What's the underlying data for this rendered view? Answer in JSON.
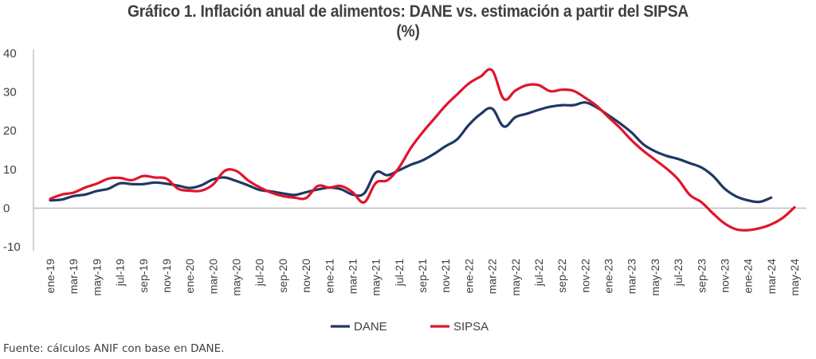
{
  "chart_data": {
    "type": "line",
    "title": "Gráfico 1. Inflación anual de alimentos: DANE vs. estimación a partir del SIPSA",
    "subtitle": "(%)",
    "xlabel": "",
    "ylabel": "",
    "ylim": [
      -10,
      40
    ],
    "yticks": [
      "-10",
      "0",
      "10",
      "20",
      "30",
      "40"
    ],
    "ytick_values": [
      -10,
      0,
      10,
      20,
      30,
      40
    ],
    "grid": false,
    "legend_position": "bottom-center",
    "x": [
      "ene-19",
      "feb-19",
      "mar-19",
      "abr-19",
      "may-19",
      "jun-19",
      "jul-19",
      "ago-19",
      "sep-19",
      "oct-19",
      "nov-19",
      "dic-19",
      "ene-20",
      "feb-20",
      "mar-20",
      "abr-20",
      "may-20",
      "jun-20",
      "jul-20",
      "ago-20",
      "sep-20",
      "oct-20",
      "nov-20",
      "dic-20",
      "ene-21",
      "feb-21",
      "mar-21",
      "abr-21",
      "may-21",
      "jun-21",
      "jul-21",
      "ago-21",
      "sep-21",
      "oct-21",
      "nov-21",
      "dic-21",
      "ene-22",
      "feb-22",
      "mar-22",
      "abr-22",
      "may-22",
      "jun-22",
      "jul-22",
      "ago-22",
      "sep-22",
      "oct-22",
      "nov-22",
      "dic-22",
      "ene-23",
      "feb-23",
      "mar-23",
      "abr-23",
      "may-23",
      "jun-23",
      "jul-23",
      "ago-23",
      "sep-23",
      "oct-23",
      "nov-23",
      "dic-23",
      "ene-24",
      "feb-24",
      "mar-24",
      "abr-24",
      "may-24"
    ],
    "tick_labels": [
      "ene-19",
      "mar-19",
      "may-19",
      "jul-19",
      "sep-19",
      "nov-19",
      "ene-20",
      "mar-20",
      "may-20",
      "jul-20",
      "sep-20",
      "nov-20",
      "ene-21",
      "mar-21",
      "may-21",
      "jul-21",
      "sep-21",
      "nov-21",
      "ene-22",
      "mar-22",
      "may-22",
      "jul-22",
      "sep-22",
      "nov-22",
      "ene-23",
      "mar-23",
      "may-23",
      "jul-23",
      "sep-23",
      "nov-23",
      "ene-24",
      "mar-24",
      "may-24"
    ],
    "series": [
      {
        "name": "DANE",
        "color": "#1f3864",
        "values": [
          2.0,
          2.2,
          3.1,
          3.5,
          4.4,
          5.0,
          6.4,
          6.2,
          6.2,
          6.6,
          6.3,
          5.8,
          5.2,
          5.9,
          7.4,
          7.9,
          7.0,
          5.9,
          4.7,
          4.3,
          3.8,
          3.4,
          4.1,
          4.8,
          5.3,
          4.9,
          3.5,
          3.8,
          9.2,
          8.5,
          9.8,
          11.2,
          12.3,
          14.0,
          16.0,
          17.8,
          21.5,
          24.3,
          25.7,
          21.1,
          23.5,
          24.4,
          25.4,
          26.2,
          26.6,
          26.6,
          27.3,
          26.0,
          24.0,
          21.9,
          19.5,
          16.5,
          14.7,
          13.5,
          12.7,
          11.6,
          10.5,
          8.3,
          5.0,
          3.0,
          2.0,
          1.6,
          2.7,
          null,
          null
        ]
      },
      {
        "name": "SIPSA",
        "color": "#e0152b",
        "values": [
          2.4,
          3.5,
          4.0,
          5.3,
          6.3,
          7.6,
          7.8,
          7.2,
          8.3,
          7.9,
          7.6,
          5.0,
          4.5,
          4.5,
          6.1,
          9.6,
          9.6,
          7.2,
          5.4,
          4.0,
          3.1,
          2.7,
          2.6,
          5.7,
          5.3,
          5.7,
          4.1,
          1.5,
          6.5,
          7.2,
          10.5,
          15.5,
          19.5,
          23.0,
          26.5,
          29.4,
          32.2,
          34.0,
          35.6,
          28.2,
          30.4,
          31.8,
          31.8,
          30.2,
          30.6,
          30.3,
          28.5,
          26.4,
          23.5,
          20.7,
          17.5,
          14.8,
          12.5,
          10.2,
          7.4,
          3.4,
          1.5,
          -1.4,
          -4.0,
          -5.5,
          -5.7,
          -5.2,
          -4.2,
          -2.5,
          0.2
        ]
      }
    ]
  },
  "source_note": "Fuente: cálculos ANIF con base en DANE."
}
